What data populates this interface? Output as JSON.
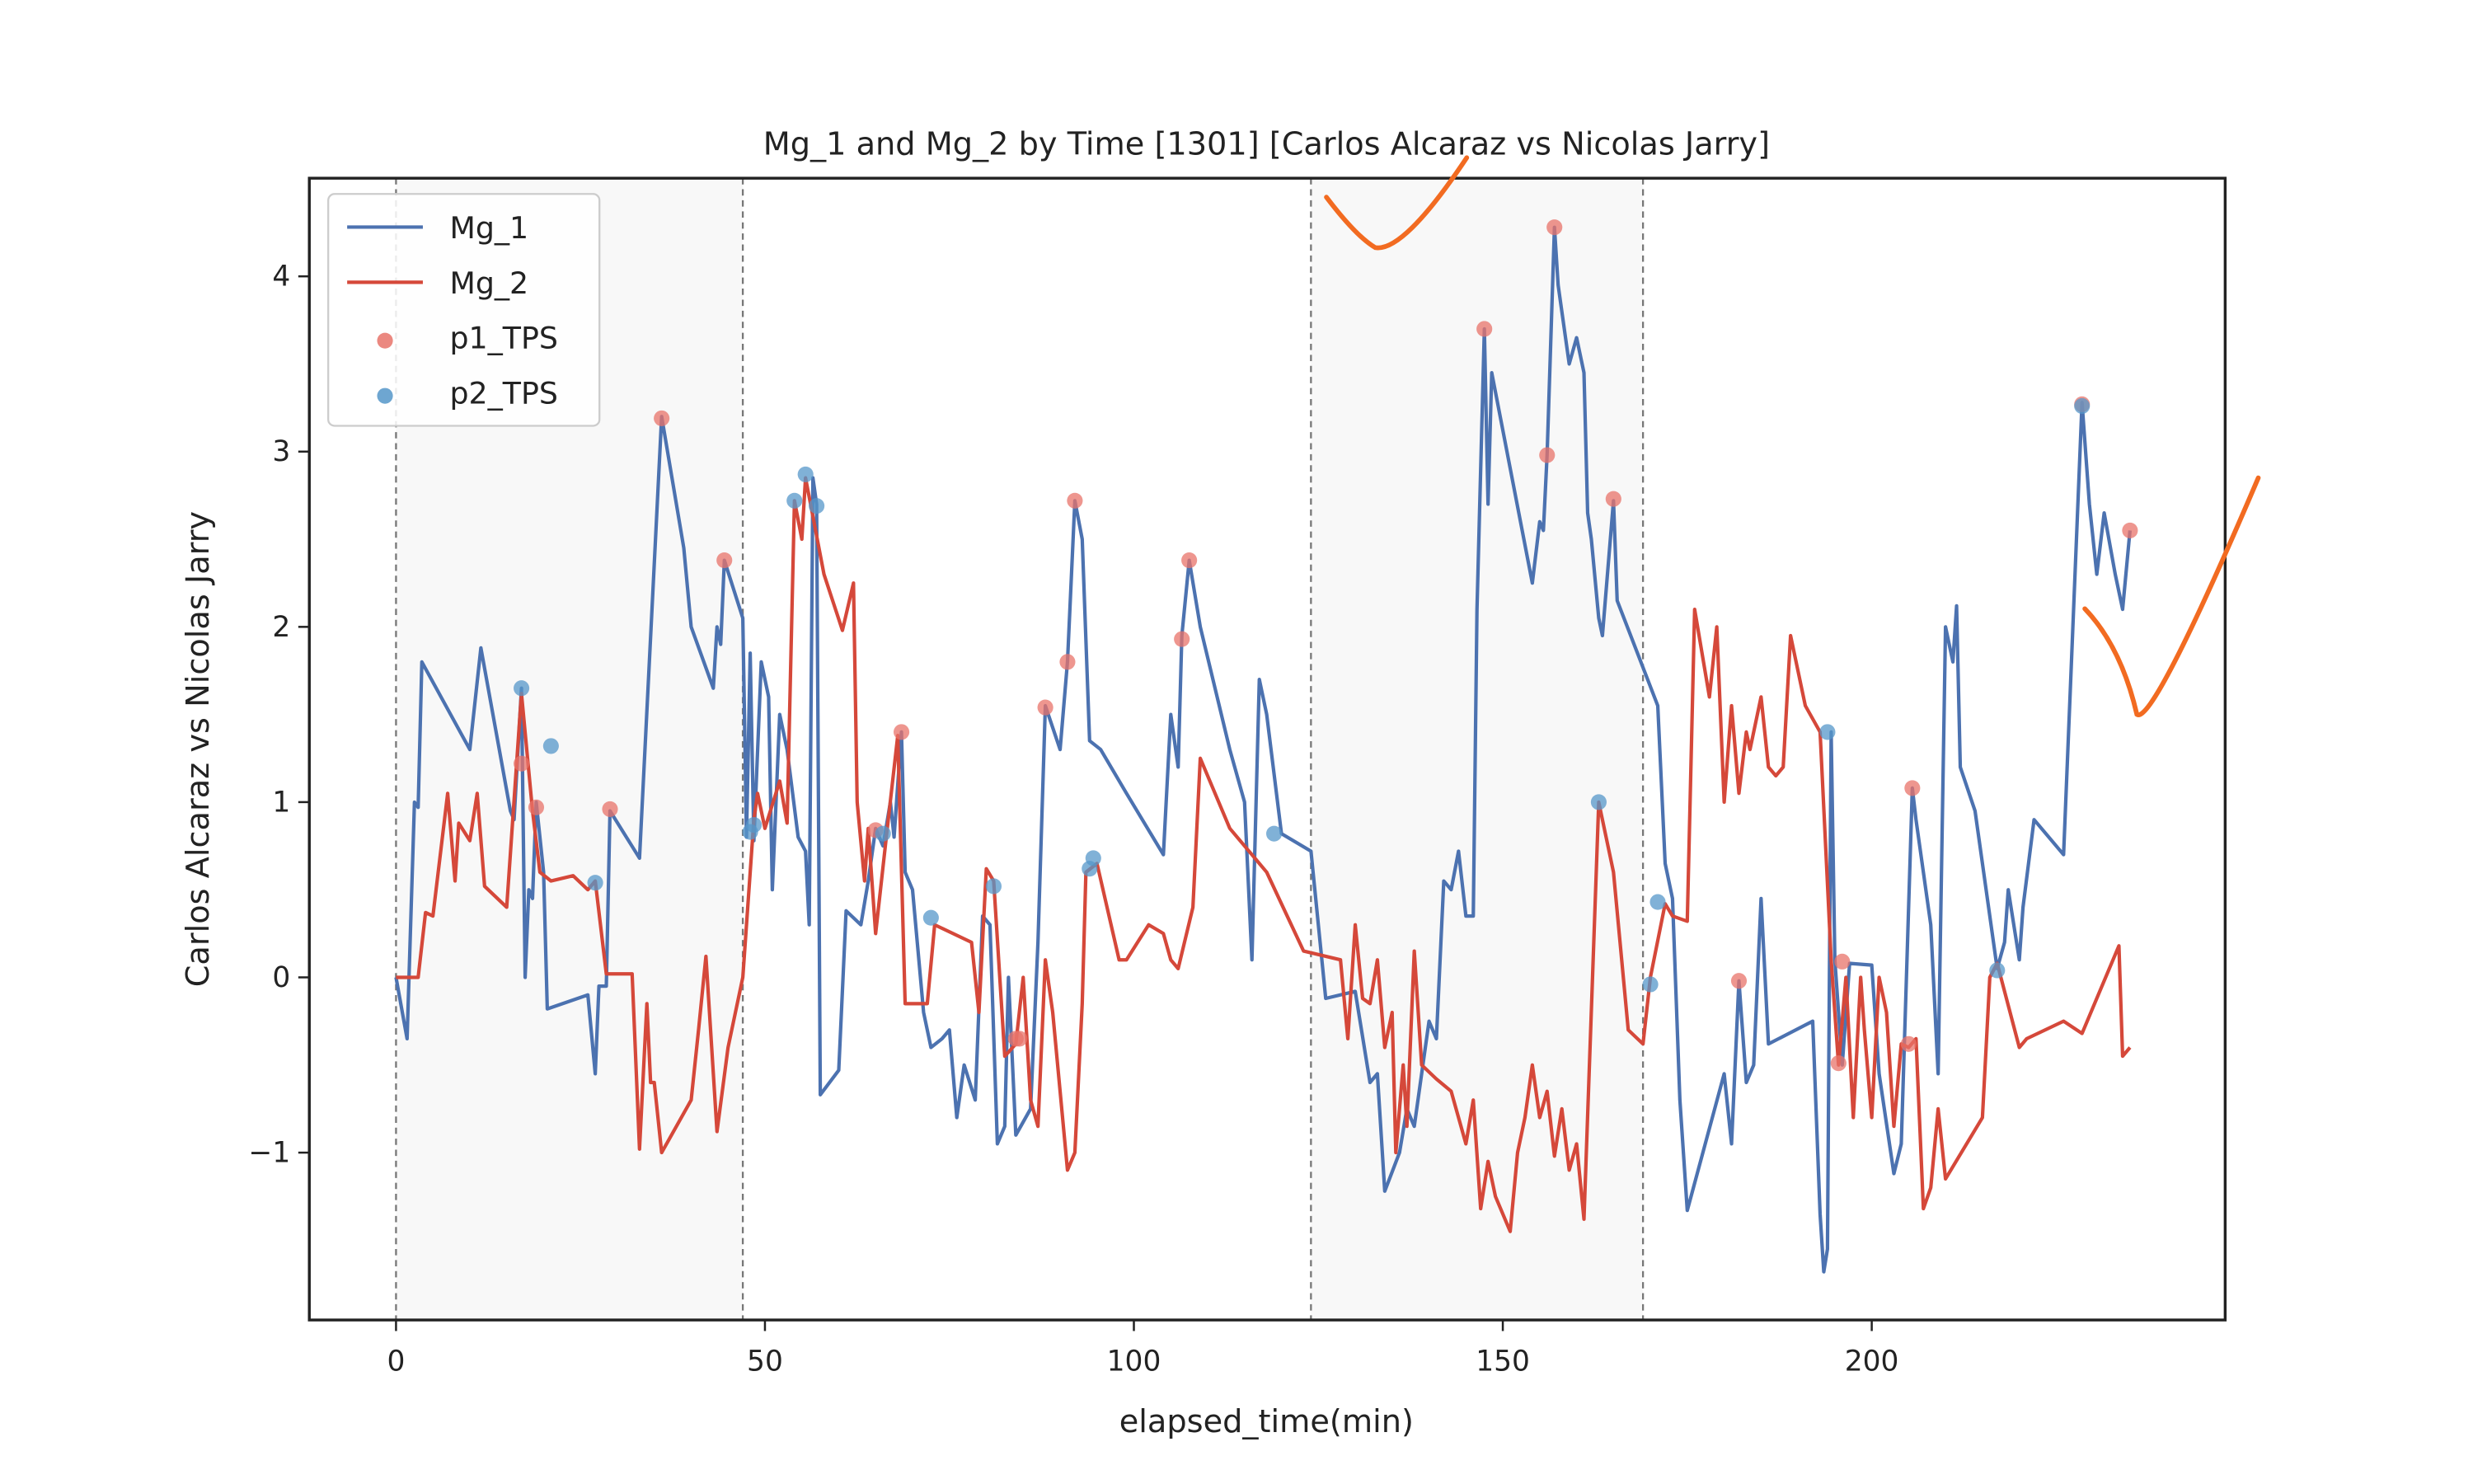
{
  "chart_data": {
    "type": "line",
    "title": "Mg_1 and Mg_2 by Time [1301] [Carlos Alcaraz vs Nicolas Jarry]",
    "xlabel": "elapsed_time(min)",
    "ylabel": "Carlos Alcaraz vs Nicolas Jarry",
    "xlim": [
      -11.75,
      247.9
    ],
    "ylim": [
      -1.955,
      4.56
    ],
    "xticks": [
      0,
      50,
      100,
      150,
      200
    ],
    "yticks": [
      {
        "value": -1,
        "label": "−1"
      },
      0,
      1,
      2,
      3,
      4
    ],
    "spans": [
      [
        0,
        47
      ],
      [
        124,
        169
      ]
    ],
    "vlines": [
      0,
      47,
      124,
      169
    ],
    "legend": "upper left",
    "series": [
      {
        "name": "Mg_1",
        "type": "line",
        "color": "#4c72b0",
        "x": [
          0,
          1.5,
          2.5,
          3,
          3.5,
          10,
          11.5,
          15.5,
          16,
          17,
          17.5,
          18,
          18.5,
          19,
          20,
          20.5,
          26,
          27,
          27.5,
          28.5,
          29,
          33,
          36,
          39,
          40,
          43,
          43.5,
          44,
          44.5,
          47,
          47.5,
          48,
          48.5,
          49.5,
          50.5,
          51,
          52,
          53,
          54.5,
          55.5,
          56,
          56.5,
          57,
          57.5,
          60,
          61,
          63,
          64,
          65,
          66,
          67,
          67.5,
          68.5,
          69,
          70,
          71.5,
          72.5,
          74,
          75,
          76,
          77,
          78.5,
          79.5,
          80.5,
          81.5,
          82.5,
          83,
          84,
          86,
          87,
          88,
          90,
          91,
          92,
          93,
          94,
          95.5,
          99,
          104,
          105,
          106,
          106.5,
          107.5,
          109,
          113,
          115,
          116,
          117,
          118,
          120,
          124,
          126,
          130,
          132,
          133,
          134,
          136,
          137,
          138,
          140,
          141,
          142,
          143,
          144,
          145,
          146,
          146.5,
          147.5,
          148,
          148.5,
          154,
          155,
          155.5,
          156,
          157,
          157.5,
          159,
          160,
          161,
          161.5,
          162,
          163,
          163.5,
          165,
          165.5,
          171,
          172,
          173,
          174,
          175,
          180,
          181,
          182,
          183,
          184,
          185,
          186,
          192,
          193,
          193.5,
          194,
          194.5,
          195,
          196,
          197,
          200,
          201,
          203,
          204,
          205.5,
          206,
          207,
          208,
          209,
          210,
          211,
          211.5,
          212,
          214,
          217,
          218,
          218.5,
          220,
          220.5,
          222,
          226,
          228.5,
          229.5,
          230.5,
          231.5,
          233,
          234,
          235
        ],
        "values": [
          0,
          -0.35,
          1.0,
          0.97,
          1.8,
          1.3,
          1.88,
          0.95,
          0.9,
          1.65,
          0,
          0.5,
          0.45,
          1.0,
          0.6,
          -0.18,
          -0.1,
          -0.55,
          -0.05,
          -0.05,
          0.95,
          0.68,
          3.2,
          2.45,
          2.0,
          1.65,
          2.0,
          1.9,
          2.38,
          2.05,
          0.8,
          1.85,
          0.78,
          1.8,
          1.6,
          0.5,
          1.5,
          1.3,
          0.8,
          0.72,
          0.3,
          2.85,
          2.7,
          -0.67,
          -0.53,
          0.38,
          0.3,
          0.55,
          0.85,
          0.75,
          1.0,
          0.8,
          1.4,
          0.6,
          0.5,
          -0.2,
          -0.4,
          -0.35,
          -0.3,
          -0.8,
          -0.5,
          -0.7,
          0.35,
          0.3,
          -0.95,
          -0.85,
          0.0,
          -0.9,
          -0.75,
          0.2,
          1.55,
          1.3,
          1.8,
          2.72,
          2.5,
          1.35,
          1.3,
          1.05,
          0.7,
          1.5,
          1.2,
          1.95,
          2.38,
          2.0,
          1.3,
          1.0,
          0.1,
          1.7,
          1.5,
          0.82,
          0.72,
          -0.12,
          -0.08,
          -0.6,
          -0.55,
          -1.22,
          -1.0,
          -0.75,
          -0.85,
          -0.25,
          -0.35,
          0.55,
          0.5,
          0.72,
          0.35,
          0.35,
          2.1,
          3.7,
          2.7,
          3.45,
          2.25,
          2.6,
          2.55,
          2.98,
          4.28,
          3.95,
          3.5,
          3.65,
          3.45,
          2.65,
          2.5,
          2.05,
          1.95,
          2.72,
          2.15,
          1.55,
          0.65,
          0.45,
          -0.7,
          -1.33,
          -0.55,
          -0.95,
          -0.02,
          -0.6,
          -0.5,
          0.45,
          -0.38,
          -0.25,
          -1.35,
          -1.68,
          -1.55,
          1.4,
          0.1,
          -0.5,
          0.08,
          0.07,
          -0.55,
          -1.12,
          -0.95,
          1.08,
          0.9,
          0.6,
          0.3,
          -0.55,
          2.0,
          1.8,
          2.12,
          1.2,
          0.95,
          0.05,
          0.2,
          0.5,
          0.1,
          0.4,
          0.9,
          0.7,
          3.28,
          2.7,
          2.3,
          2.65,
          2.3,
          2.1,
          2.55
        ]
      },
      {
        "name": "Mg_2",
        "type": "line",
        "color": "#d5483a",
        "x": [
          0,
          3,
          4,
          5,
          7,
          8,
          8.5,
          10,
          11,
          12,
          15,
          17,
          18.5,
          19.5,
          21,
          24,
          26,
          27,
          28.5,
          32,
          33,
          34,
          34.5,
          35,
          36,
          40,
          41,
          42,
          43.5,
          45,
          47,
          48.5,
          49,
          50,
          52,
          53,
          54,
          55,
          55.5,
          58,
          60.5,
          62,
          62.5,
          63.5,
          64,
          65,
          66.5,
          68,
          69,
          72,
          73,
          78,
          79,
          80,
          81,
          82.5,
          84,
          85,
          86,
          87,
          88,
          89,
          91,
          92,
          93,
          93.5,
          95,
          98,
          99,
          102,
          104,
          105,
          106,
          108,
          109,
          113,
          118,
          123,
          128,
          129,
          130,
          131,
          132,
          133,
          134,
          135,
          135.5,
          136.5,
          137,
          138,
          139,
          141,
          143,
          145,
          146,
          147,
          148,
          149,
          151,
          152,
          153,
          154,
          155,
          156,
          157,
          158,
          159,
          160,
          161,
          163,
          165,
          167,
          169,
          170,
          172,
          173,
          175,
          176,
          178,
          179,
          180,
          181,
          182,
          183,
          183.5,
          185,
          186,
          187,
          188,
          189,
          191,
          193,
          194.5,
          195.5,
          196.5,
          197.5,
          198.5,
          199,
          200,
          201,
          202,
          203,
          204,
          205,
          206,
          207,
          208,
          209,
          210,
          215,
          216,
          217,
          220,
          221,
          226,
          228.5,
          233.5,
          234,
          235
        ],
        "values": [
          0,
          0,
          0.37,
          0.35,
          1.05,
          0.55,
          0.88,
          0.78,
          1.05,
          0.52,
          0.4,
          1.62,
          0.95,
          0.6,
          0.55,
          0.58,
          0.5,
          0.55,
          0.02,
          0.02,
          -0.98,
          -0.15,
          -0.6,
          -0.6,
          -1.0,
          -0.7,
          -0.3,
          0.12,
          -0.88,
          -0.4,
          0.0,
          0.9,
          1.05,
          0.85,
          1.12,
          0.88,
          2.72,
          2.5,
          2.85,
          2.3,
          1.98,
          2.25,
          1.0,
          0.55,
          0.85,
          0.25,
          0.82,
          1.38,
          -0.15,
          -0.15,
          0.3,
          0.2,
          -0.2,
          0.62,
          0.55,
          -0.45,
          -0.38,
          0.0,
          -0.7,
          -0.85,
          0.1,
          -0.2,
          -1.1,
          -1.0,
          -0.15,
          0.6,
          0.65,
          0.1,
          0.1,
          0.3,
          0.25,
          0.1,
          0.05,
          0.4,
          1.25,
          0.85,
          0.6,
          0.15,
          0.1,
          -0.35,
          0.3,
          -0.12,
          -0.15,
          0.1,
          -0.4,
          -0.2,
          -1.0,
          -0.5,
          -0.85,
          0.15,
          -0.5,
          -0.58,
          -0.65,
          -0.95,
          -0.7,
          -1.32,
          -1.05,
          -1.25,
          -1.45,
          -1.0,
          -0.8,
          -0.5,
          -0.8,
          -0.65,
          -1.02,
          -0.75,
          -1.1,
          -0.95,
          -1.38,
          1.0,
          0.6,
          -0.3,
          -0.38,
          0.0,
          0.42,
          0.35,
          0.32,
          2.1,
          1.6,
          2.0,
          1.0,
          1.55,
          1.05,
          1.4,
          1.3,
          1.6,
          1.2,
          1.15,
          1.2,
          1.95,
          1.55,
          1.4,
          0.1,
          -0.5,
          0.0,
          -0.8,
          0.0,
          -0.3,
          -0.8,
          0.0,
          -0.2,
          -0.85,
          -0.38,
          -0.4,
          -0.35,
          -1.32,
          -1.2,
          -0.75,
          -1.15,
          -0.8,
          0.0,
          0.08,
          -0.4,
          -0.35,
          -0.25,
          -0.32,
          0.18,
          -0.45,
          -0.4
        ]
      },
      {
        "name": "p1_TPS",
        "type": "scatter",
        "color": "#e8736a",
        "x": [
          17,
          19,
          29,
          36,
          44.5,
          65,
          68.5,
          84,
          84.5,
          88,
          91,
          92,
          106.5,
          107.5,
          147.5,
          156,
          157,
          165,
          182,
          195.5,
          196,
          205,
          205.5,
          228.5,
          235
        ],
        "values": [
          1.22,
          0.97,
          0.96,
          3.19,
          2.38,
          0.84,
          1.4,
          -0.35,
          -0.35,
          1.54,
          1.8,
          2.72,
          1.93,
          2.38,
          3.7,
          2.98,
          4.28,
          2.73,
          -0.02,
          -0.49,
          0.09,
          -0.38,
          1.08,
          3.27,
          2.55
        ]
      },
      {
        "name": "p2_TPS",
        "type": "scatter",
        "color": "#5597c9",
        "x": [
          17,
          21,
          27,
          48,
          48.5,
          54,
          55.5,
          57,
          66,
          72.5,
          81,
          94,
          94.5,
          119,
          163,
          170,
          171,
          194,
          217,
          228.5
        ],
        "values": [
          1.65,
          1.32,
          0.54,
          0.83,
          0.87,
          2.72,
          2.87,
          2.69,
          0.82,
          0.34,
          0.52,
          0.62,
          0.68,
          0.82,
          1.0,
          -0.04,
          0.43,
          1.4,
          0.04,
          3.26
        ]
      }
    ]
  }
}
